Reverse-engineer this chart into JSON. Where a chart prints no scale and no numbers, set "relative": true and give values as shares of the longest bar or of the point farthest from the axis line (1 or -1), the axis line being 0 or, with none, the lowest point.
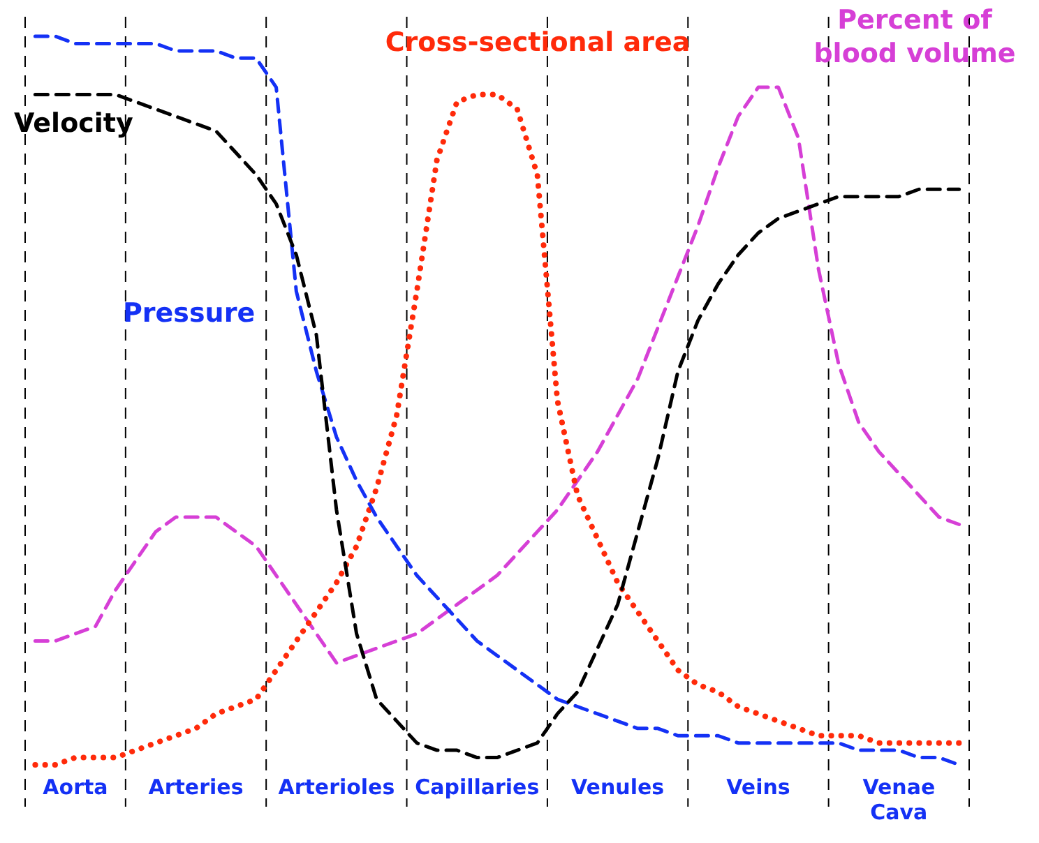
{
  "chart_data": {
    "type": "line",
    "relative": true,
    "tick_labels": "x",
    "grid": false,
    "legend": false,
    "marker": "none",
    "categories": [
      null,
      null,
      "Aorta",
      null,
      null,
      null,
      null,
      null,
      "Arteries",
      null,
      null,
      null,
      null,
      null,
      null,
      "Arterioles",
      null,
      null,
      null,
      null,
      null,
      null,
      "Capillaries",
      null,
      null,
      null,
      null,
      null,
      null,
      "Venules",
      null,
      null,
      null,
      null,
      null,
      null,
      "Veins",
      null,
      null,
      null,
      null,
      null,
      null,
      "Venae Cava",
      null,
      null,
      null
    ],
    "series": [
      {
        "name": "Velocity",
        "color": "#000000",
        "line_style": "dashed",
        "values": [
          0.92,
          0.92,
          0.92,
          0.92,
          0.92,
          0.91,
          0.9,
          0.89,
          0.88,
          0.87,
          0.84,
          0.81,
          0.77,
          0.7,
          0.59,
          0.35,
          0.18,
          0.09,
          0.06,
          0.03,
          0.02,
          0.02,
          0.01,
          0.01,
          0.02,
          0.03,
          0.07,
          0.1,
          0.16,
          0.22,
          0.32,
          0.42,
          0.54,
          0.61,
          0.66,
          0.7,
          0.73,
          0.75,
          0.76,
          0.77,
          0.78,
          0.78,
          0.78,
          0.78,
          0.79,
          0.79,
          0.79
        ]
      },
      {
        "name": "Pressure",
        "color": "#1431f5",
        "line_style": "dashed",
        "values": [
          1,
          1,
          0.99,
          0.99,
          0.99,
          0.99,
          0.99,
          0.98,
          0.98,
          0.98,
          0.97,
          0.97,
          0.93,
          0.65,
          0.54,
          0.45,
          0.39,
          0.34,
          0.3,
          0.26,
          0.23,
          0.2,
          0.17,
          0.15,
          0.13,
          0.11,
          0.09,
          0.08,
          0.07,
          0.06,
          0.05,
          0.05,
          0.04,
          0.04,
          0.04,
          0.03,
          0.03,
          0.03,
          0.03,
          0.03,
          0.03,
          0.02,
          0.02,
          0.02,
          0.01,
          0.01,
          0
        ]
      },
      {
        "name": "Cross-sectional area",
        "color": "#ff2a0a",
        "line_style": "dotted",
        "values": [
          0,
          0,
          0.01,
          0.01,
          0.01,
          0.02,
          0.03,
          0.04,
          0.05,
          0.07,
          0.08,
          0.09,
          0.13,
          0.17,
          0.21,
          0.25,
          0.3,
          0.38,
          0.48,
          0.65,
          0.83,
          0.91,
          0.92,
          0.92,
          0.9,
          0.81,
          0.5,
          0.37,
          0.31,
          0.25,
          0.21,
          0.17,
          0.13,
          0.11,
          0.1,
          0.08,
          0.07,
          0.06,
          0.05,
          0.04,
          0.04,
          0.04,
          0.03,
          0.03,
          0.03,
          0.03,
          0.03
        ]
      },
      {
        "name": "Percent of blood volume",
        "color": "#d63fd6",
        "line_style": "dashed",
        "values": [
          0.17,
          0.17,
          0.18,
          0.19,
          0.24,
          0.28,
          0.32,
          0.34,
          0.34,
          0.34,
          0.32,
          0.3,
          0.26,
          0.22,
          0.18,
          0.14,
          0.15,
          0.16,
          0.17,
          0.18,
          0.2,
          0.22,
          0.24,
          0.26,
          0.29,
          0.32,
          0.35,
          0.39,
          0.43,
          0.48,
          0.53,
          0.6,
          0.67,
          0.74,
          0.82,
          0.89,
          0.93,
          0.93,
          0.86,
          0.68,
          0.55,
          0.47,
          0.43,
          0.4,
          0.37,
          0.34,
          0.33
        ]
      }
    ]
  }
}
